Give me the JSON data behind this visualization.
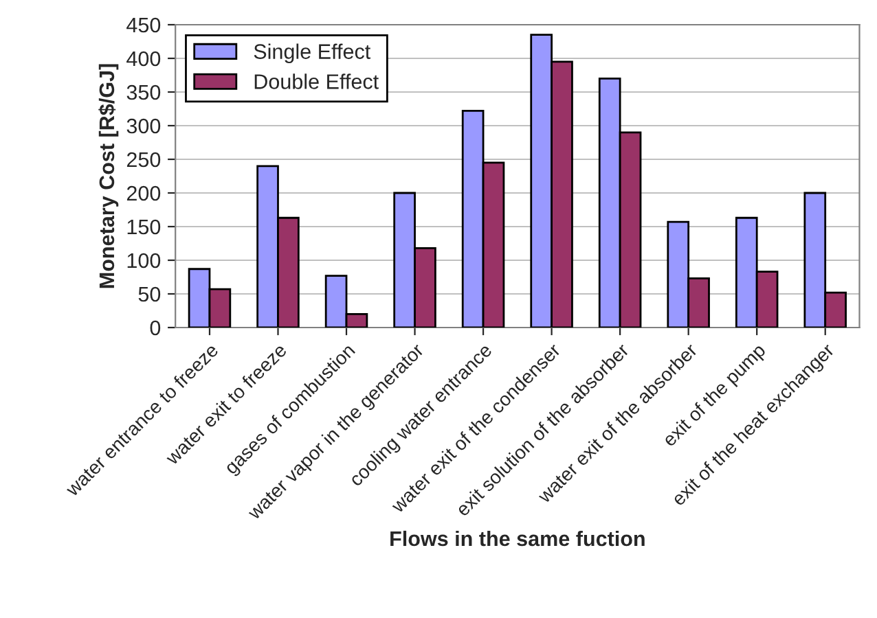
{
  "chart_data": {
    "type": "bar",
    "xlabel": "Flows in the same fuction",
    "ylabel": "Monetary Cost [R$/GJ]",
    "categories": [
      "water entrance to freeze",
      "water exit to freeze",
      "gases of combustion",
      "water vapor in the generator",
      "cooling water entrance",
      "water exit of the condenser",
      "exit solution of the absorber",
      "water exit of the absorber",
      "exit of the pump",
      "exit of the heat exchanger"
    ],
    "series": [
      {
        "name": "Single Effect",
        "color": "#9999ff",
        "values": [
          87,
          240,
          77,
          200,
          322,
          435,
          370,
          157,
          163,
          200
        ]
      },
      {
        "name": "Double Effect",
        "color": "#993366",
        "values": [
          57,
          163,
          20,
          118,
          245,
          395,
          290,
          73,
          83,
          52
        ]
      }
    ],
    "ylim": [
      0,
      450
    ],
    "yticks": [
      0,
      50,
      100,
      150,
      200,
      250,
      300,
      350,
      400,
      450
    ],
    "grid": "y",
    "legend": "top left"
  }
}
